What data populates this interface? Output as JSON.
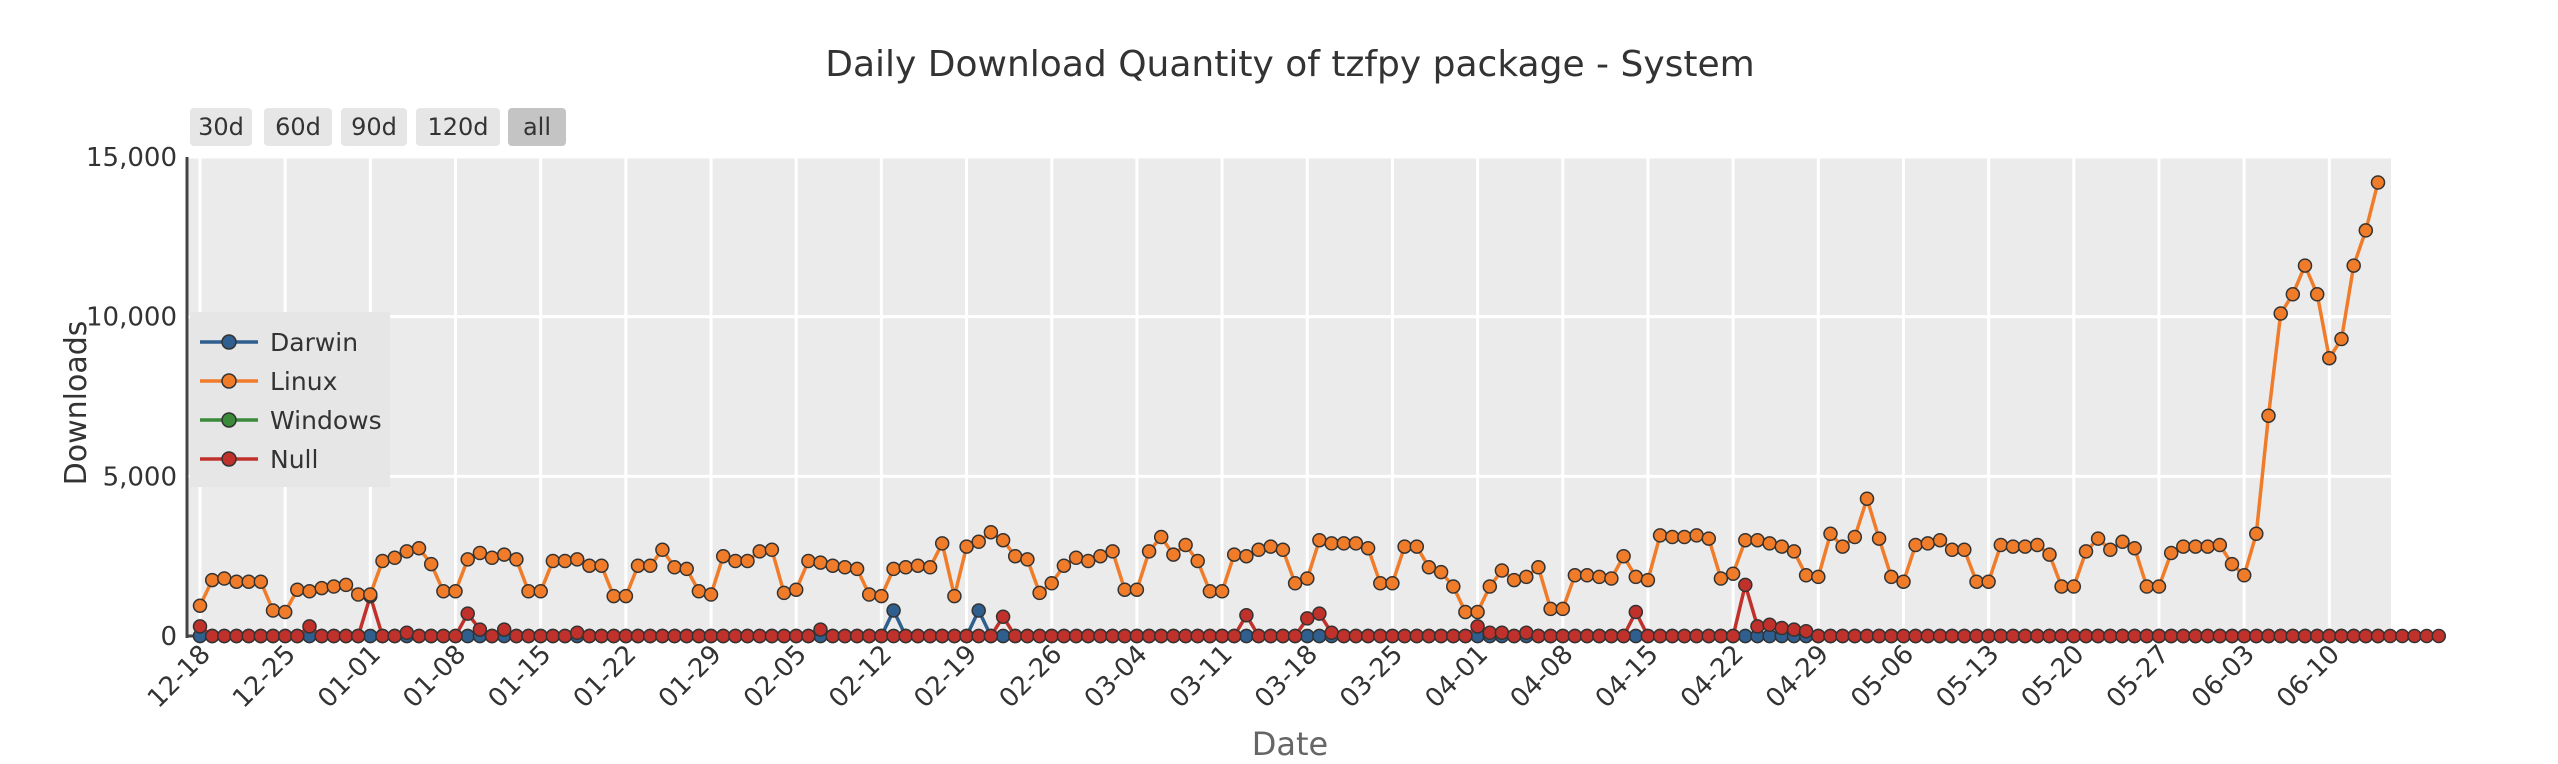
{
  "range_buttons": [
    {
      "label": "30d",
      "active": false
    },
    {
      "label": "60d",
      "active": false
    },
    {
      "label": "90d",
      "active": false
    },
    {
      "label": "120d",
      "active": false
    },
    {
      "label": "all",
      "active": true
    }
  ],
  "chart_data": {
    "type": "line",
    "title": "Daily Download Quantity of tzfpy package - System",
    "xlabel": "Date",
    "ylabel": "Downloads",
    "ylim": [
      0,
      15000
    ],
    "yticks": [
      0,
      5000,
      10000,
      15000
    ],
    "ytick_labels": [
      "0",
      "5,000",
      "10,000",
      "15,000"
    ],
    "x_start": "2023-12-18",
    "x_end": "2024-06-14",
    "xtick_labels": [
      "12-18",
      "12-25",
      "01-01",
      "01-08",
      "01-15",
      "01-22",
      "01-29",
      "02-05",
      "02-12",
      "02-19",
      "02-26",
      "03-04",
      "03-11",
      "03-18",
      "03-25",
      "04-01",
      "04-08",
      "04-15",
      "04-22",
      "04-29",
      "05-06",
      "05-13",
      "05-20",
      "05-27",
      "06-03",
      "06-10"
    ],
    "grid": true,
    "legend_position": "left-middle",
    "series": [
      {
        "name": "Darwin",
        "color": "#2f5f8f",
        "values": [
          0,
          0,
          0,
          0,
          0,
          0,
          0,
          0,
          0,
          0,
          0,
          0,
          0,
          0,
          0,
          0,
          0,
          0,
          0,
          0,
          0,
          0,
          0,
          0,
          0,
          0,
          0,
          0,
          0,
          0,
          0,
          0,
          0,
          0,
          0,
          0,
          0,
          0,
          0,
          0,
          0,
          0,
          0,
          0,
          0,
          0,
          0,
          0,
          0,
          0,
          0,
          0,
          0,
          0,
          0,
          0,
          0,
          800,
          0,
          0,
          0,
          0,
          0,
          0,
          800,
          0,
          0,
          0,
          0,
          0,
          0,
          0,
          0,
          0,
          0,
          0,
          0,
          0,
          0,
          0,
          0,
          0,
          0,
          0,
          0,
          0,
          0,
          0,
          0,
          0,
          0,
          0,
          0,
          0,
          0,
          0,
          0,
          0,
          0,
          0,
          0,
          0,
          0,
          0,
          0,
          0,
          0,
          0,
          0,
          0,
          0,
          0,
          0,
          0,
          0,
          0,
          0,
          0,
          0,
          0,
          0,
          0,
          0,
          0,
          0,
          0,
          0,
          0,
          0,
          0,
          0,
          0,
          0,
          0,
          0,
          0,
          0,
          0,
          0,
          0,
          0,
          0,
          0,
          0,
          0,
          0,
          0,
          0,
          0,
          0,
          0,
          0,
          0,
          0,
          0,
          0,
          0,
          0,
          0,
          0,
          0,
          0,
          0,
          0,
          0,
          0,
          0,
          0,
          0,
          0,
          0,
          0,
          0,
          0,
          0,
          0,
          0,
          0,
          0,
          0
        ]
      },
      {
        "name": "Linux",
        "color": "#f07c2a",
        "values": [
          950,
          1750,
          1800,
          1700,
          1700,
          1700,
          800,
          750,
          1450,
          1400,
          1500,
          1550,
          1600,
          1300,
          1300,
          2350,
          2450,
          2650,
          2750,
          2250,
          1400,
          1400,
          2400,
          2600,
          2450,
          2550,
          2400,
          1400,
          1400,
          2350,
          2350,
          2400,
          2200,
          2200,
          1250,
          1250,
          2200,
          2200,
          2700,
          2150,
          2100,
          1400,
          1300,
          2500,
          2350,
          2350,
          2650,
          2700,
          1350,
          1450,
          2350,
          2300,
          2200,
          2150,
          2100,
          1300,
          1250,
          2100,
          2150,
          2200,
          2150,
          2900,
          1250,
          2800,
          2950,
          3250,
          3000,
          2500,
          2400,
          1350,
          1650,
          2200,
          2450,
          2350,
          2500,
          2650,
          1450,
          1450,
          2650,
          3100,
          2550,
          2850,
          2350,
          1400,
          1400,
          2550,
          2500,
          2700,
          2800,
          2700,
          1650,
          1800,
          3000,
          2900,
          2900,
          2900,
          2750,
          1650,
          1650,
          2800,
          2800,
          2150,
          2000,
          1550,
          750,
          750,
          1550,
          2050,
          1750,
          1850,
          2150,
          850,
          850,
          1900,
          1900,
          1850,
          1800,
          2500,
          1850,
          1750,
          3150,
          3100,
          3100,
          3150,
          3050,
          1800,
          1950,
          3000,
          3000,
          2900,
          2800,
          2650,
          1900,
          1850,
          3200,
          2800,
          3100,
          4300,
          3050,
          1850,
          1700,
          2850,
          2900,
          3000,
          2700,
          2700,
          1700,
          1700,
          2850,
          2800,
          2800,
          2850,
          2550,
          1550,
          1550,
          2650,
          3050,
          2700,
          2950,
          2750,
          1550,
          1550,
          2600,
          2800,
          2800,
          2800,
          2850,
          2250,
          1900,
          3200,
          6900,
          10100,
          10700,
          11600,
          10700,
          8700,
          9300,
          11600,
          12700,
          14200
        ]
      },
      {
        "name": "Windows",
        "color": "#3a8a3a",
        "values": [
          0,
          0,
          0,
          0,
          0,
          0,
          0,
          0,
          0,
          0,
          0,
          0,
          0,
          0,
          0,
          0,
          0,
          0,
          0,
          0,
          0,
          0,
          0,
          0,
          0,
          0,
          0,
          0,
          0,
          0,
          0,
          0,
          0,
          0,
          0,
          0,
          0,
          0,
          0,
          0,
          0,
          0,
          0,
          0,
          0,
          0,
          0,
          0,
          0,
          0,
          0,
          0,
          0,
          0,
          0,
          0,
          0,
          0,
          0,
          0,
          0,
          0,
          0,
          0,
          0,
          0,
          0,
          0,
          0,
          0,
          0,
          0,
          0,
          0,
          0,
          0,
          0,
          0,
          0,
          0,
          0,
          0,
          0,
          0,
          0,
          0,
          0,
          0,
          0,
          0,
          0,
          0,
          0,
          0,
          0,
          0,
          0,
          0,
          0,
          0,
          0,
          0,
          0,
          0,
          0,
          0,
          0,
          0,
          0,
          0,
          0,
          0,
          0,
          0,
          0,
          0,
          0,
          0,
          0,
          0,
          0,
          0,
          0,
          0,
          0,
          0,
          0,
          0,
          0,
          0,
          0,
          0,
          0,
          0,
          0,
          0,
          0,
          0,
          0,
          0,
          0,
          0,
          0,
          0,
          0,
          0,
          0,
          0,
          0,
          0,
          0,
          0,
          0,
          0,
          0,
          0,
          0,
          0,
          0,
          0,
          0,
          0,
          0,
          0,
          0,
          0,
          0,
          0,
          0,
          0,
          0,
          0,
          0,
          0,
          0,
          0,
          0,
          0,
          0,
          0
        ]
      },
      {
        "name": "Null",
        "color": "#c0312b",
        "values": [
          300,
          0,
          0,
          0,
          0,
          0,
          0,
          0,
          0,
          300,
          0,
          0,
          0,
          0,
          1250,
          0,
          0,
          100,
          0,
          0,
          0,
          0,
          700,
          200,
          0,
          200,
          0,
          0,
          0,
          0,
          0,
          100,
          0,
          0,
          0,
          0,
          0,
          0,
          0,
          0,
          0,
          0,
          0,
          0,
          0,
          0,
          0,
          0,
          0,
          0,
          0,
          200,
          0,
          0,
          0,
          0,
          0,
          0,
          0,
          0,
          0,
          0,
          0,
          0,
          0,
          0,
          600,
          0,
          0,
          0,
          0,
          0,
          0,
          0,
          0,
          0,
          0,
          0,
          0,
          0,
          0,
          0,
          0,
          0,
          0,
          0,
          650,
          0,
          0,
          0,
          0,
          550,
          700,
          100,
          0,
          0,
          0,
          0,
          0,
          0,
          0,
          0,
          0,
          0,
          0,
          300,
          100,
          100,
          0,
          100,
          0,
          0,
          0,
          0,
          0,
          0,
          0,
          0,
          750,
          0,
          0,
          0,
          0,
          0,
          0,
          0,
          0,
          1600,
          300,
          350,
          250,
          200,
          150,
          0,
          0,
          0,
          0,
          0,
          0,
          0,
          0,
          0,
          0,
          0,
          0,
          0,
          0,
          0,
          0,
          0,
          0,
          0,
          0,
          0,
          0,
          0,
          0,
          0,
          0,
          0,
          0,
          0,
          0,
          0,
          0,
          0,
          0,
          0,
          0,
          0,
          0,
          0,
          0,
          0,
          0,
          0,
          0,
          0,
          0,
          0,
          0,
          0,
          0,
          0,
          0
        ]
      }
    ]
  }
}
